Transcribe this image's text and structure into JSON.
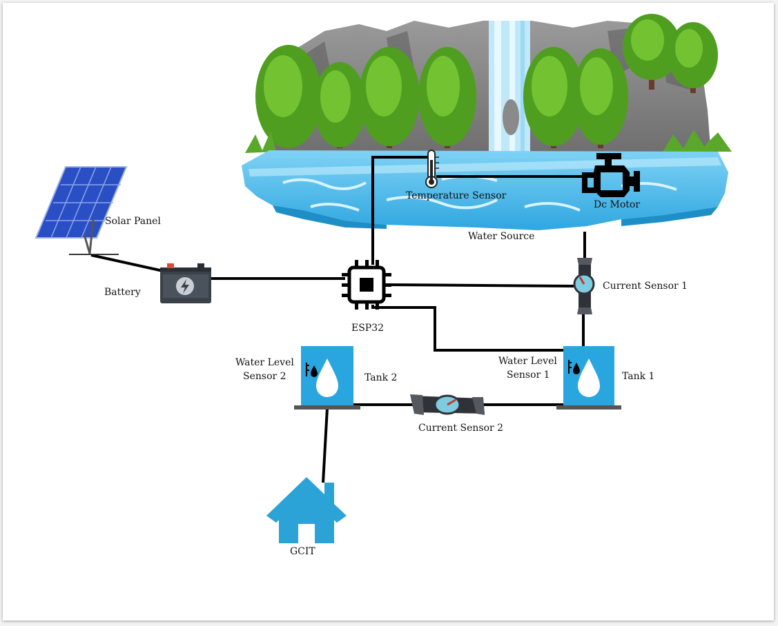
{
  "labels": {
    "temperature_sensor": "Temperature Sensor",
    "dc_motor": "Dc Motor",
    "water_source": "Water Source",
    "solar_panel": "Solar Panel",
    "battery": "Battery",
    "esp32": "ESP32",
    "current_sensor_1": "Current Sensor 1",
    "current_sensor_2": "Current Sensor 2",
    "water_level_sensor_2_line1": "Water Level",
    "water_level_sensor_2_line2": "Sensor 2",
    "water_level_sensor_1_line1": "Water Level",
    "water_level_sensor_1_line2": "Sensor 1",
    "tank_1": "Tank 1",
    "tank_2": "Tank 2",
    "gcit": "GCIT"
  },
  "colors": {
    "tank_blue": "#29a6e0",
    "house_blue": "#2ba3d6",
    "wire": "#000000",
    "water_light": "#8fd6f4",
    "water_dark": "#3db3e6",
    "rock": "#8c8c8c",
    "tree": "#4f9e1f",
    "solar_blue": "#2a4fc4",
    "battery_body": "#3b4148"
  }
}
